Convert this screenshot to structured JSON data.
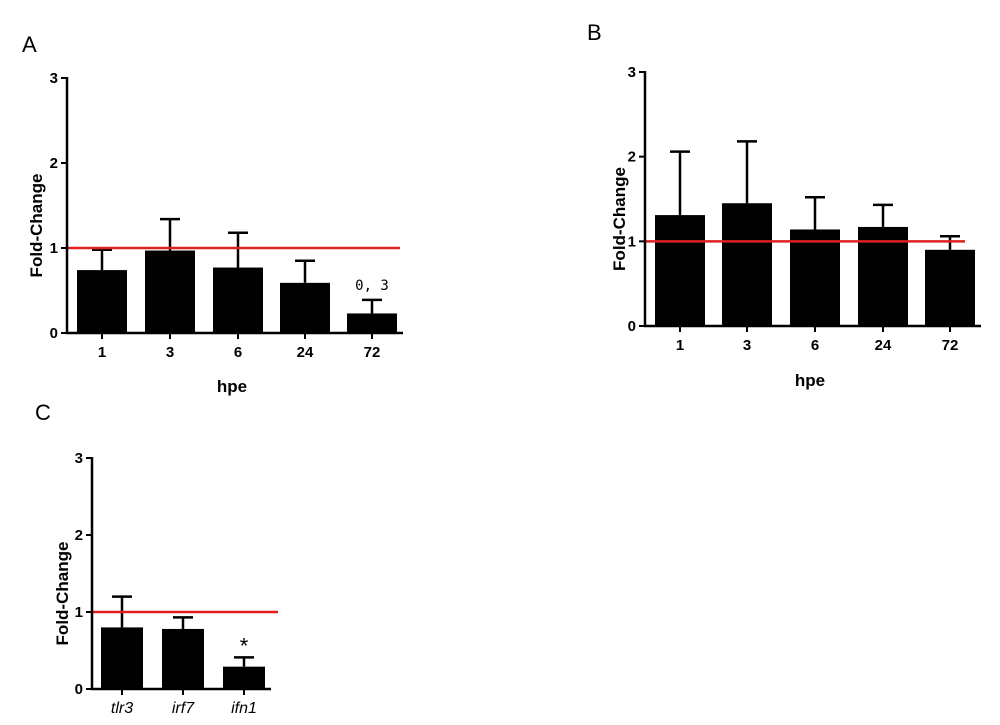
{
  "chart_data": [
    {
      "type": "bar",
      "panel_label": "A",
      "categories": [
        "1",
        "3",
        "6",
        "24",
        "72"
      ],
      "values": [
        0.74,
        0.97,
        0.77,
        0.59,
        0.23
      ],
      "error_upper": [
        0.98,
        1.34,
        1.18,
        0.85,
        0.39
      ],
      "xlabel": "hpe",
      "ylabel": "Fold-Change",
      "ylim": [
        0,
        3
      ],
      "yticks": [
        "0",
        "1",
        "2",
        "3"
      ],
      "reference_line": {
        "y": 1,
        "color": "#e02020"
      },
      "bar_color": "#000000",
      "category_style": "bold",
      "annotations": [
        {
          "category": "72",
          "text": "0, 3"
        }
      ]
    },
    {
      "type": "bar",
      "panel_label": "B",
      "categories": [
        "1",
        "3",
        "6",
        "24",
        "72"
      ],
      "values": [
        1.31,
        1.45,
        1.14,
        1.17,
        0.9
      ],
      "error_upper": [
        2.06,
        2.18,
        1.52,
        1.43,
        1.06
      ],
      "xlabel": "hpe",
      "ylabel": "Fold-Change",
      "ylim": [
        0,
        3
      ],
      "yticks": [
        "0",
        "1",
        "2",
        "3"
      ],
      "reference_line": {
        "y": 1,
        "color": "#e02020"
      },
      "bar_color": "#000000",
      "category_style": "bold",
      "annotations": []
    },
    {
      "type": "bar",
      "panel_label": "C",
      "categories": [
        "tlr3",
        "irf7",
        "ifn1"
      ],
      "values": [
        0.8,
        0.78,
        0.29
      ],
      "error_upper": [
        1.2,
        0.93,
        0.41
      ],
      "xlabel": "",
      "ylabel": "Fold-Change",
      "ylim": [
        0,
        3
      ],
      "yticks": [
        "0",
        "1",
        "2",
        "3"
      ],
      "reference_line": {
        "y": 1,
        "color": "#e02020"
      },
      "bar_color": "#000000",
      "category_style": "italic",
      "annotations": [
        {
          "category": "ifn1",
          "text": "*"
        }
      ]
    }
  ]
}
